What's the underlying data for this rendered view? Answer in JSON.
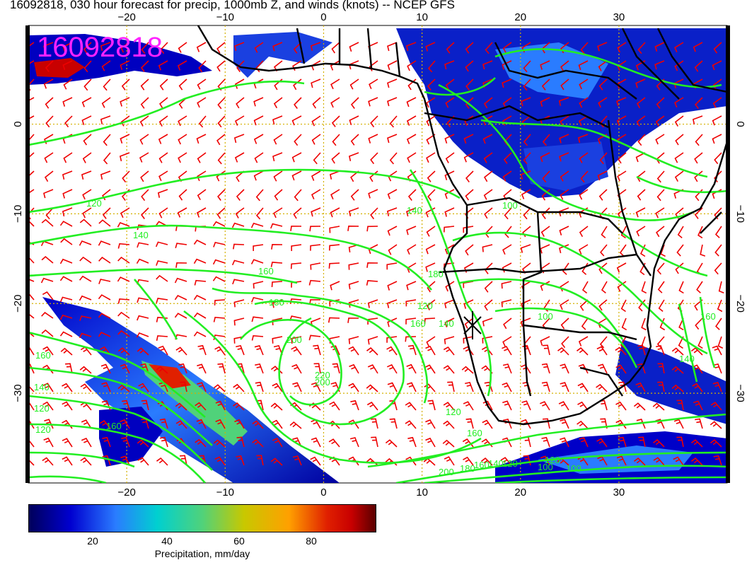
{
  "title": "16092818, 030 hour forecast for precip, 1000mb Z, and winds (knots) -- NCEP GFS",
  "stamp": "16092818",
  "map": {
    "lon_range": [
      -30,
      41
    ],
    "lat_range": [
      -40,
      11
    ],
    "lon_ticks": [
      -20,
      -10,
      0,
      10,
      20,
      30
    ],
    "lat_ticks": [
      0,
      -10,
      -20,
      -30
    ],
    "grid": "dotted gold lines every 10 degrees",
    "colors": {
      "contour": "#22ee22",
      "barb": "#ee0000",
      "coast": "#000000",
      "stamp": "#ff22ff",
      "grid": "#d4b000"
    },
    "contour_labels": [
      "120",
      "140",
      "160",
      "180",
      "200",
      "160",
      "140",
      "120",
      "120",
      "160",
      "200",
      "220",
      "160",
      "140",
      "120",
      "100",
      "180",
      "140",
      "120",
      "100",
      "160",
      "200",
      "180",
      "160",
      "140",
      "120",
      "100",
      "120",
      "160",
      "140",
      "100"
    ],
    "precip_areas": [
      "ITCZ band over tropical Atlantic and West-Central Africa",
      "Frontal band south-west of Africa (~20S to 40S)",
      "Band south of South Africa",
      "Rain east of South Africa near Mozambique channel"
    ]
  },
  "colorbar": {
    "ticks": [
      "20",
      "40",
      "60",
      "80"
    ],
    "label": "Precipitation, mm/day",
    "colors": [
      "#00005a",
      "#0000d0",
      "#2a7cff",
      "#00d0d0",
      "#50d27a",
      "#c8c800",
      "#ffa000",
      "#e02000",
      "#c80000",
      "#5a0000"
    ]
  }
}
